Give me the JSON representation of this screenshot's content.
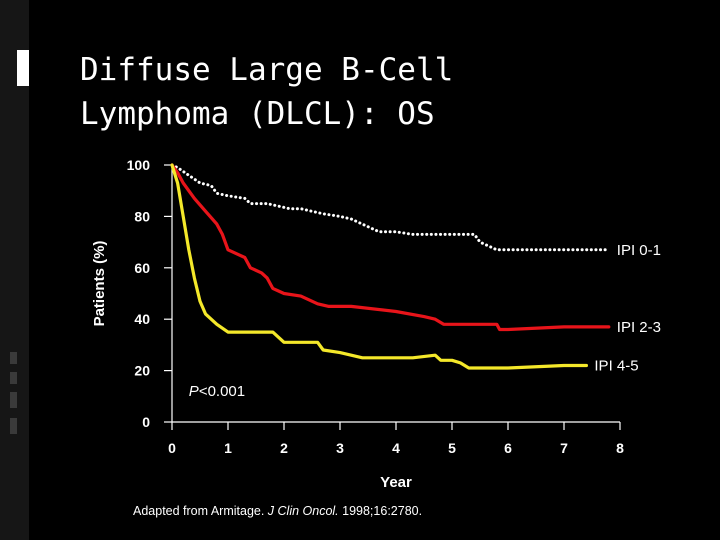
{
  "slide": {
    "title_line1": "Diffuse Large B-Cell",
    "title_line2": "Lymphoma (DLCL): OS"
  },
  "colors": {
    "ipi01": "#ffffff",
    "ipi23": "#e8141a",
    "ipi45": "#f4e82a",
    "axis": "#ffffff"
  },
  "chart_data": {
    "type": "line",
    "title": "Diffuse Large B-Cell Lymphoma (DLCL): OS",
    "xlabel": "Year",
    "ylabel": "Patients (%)",
    "xlim": [
      0,
      8
    ],
    "ylim": [
      0,
      100
    ],
    "x_ticks": [
      0,
      1,
      2,
      3,
      4,
      5,
      6,
      7,
      8
    ],
    "y_ticks": [
      0,
      20,
      40,
      60,
      80,
      100
    ],
    "annotation": "P<0.001",
    "series": [
      {
        "name": "IPI 0-1",
        "label": "IPI 0-1",
        "style": "dotted",
        "color_key": "ipi01",
        "points": [
          [
            0,
            100
          ],
          [
            0.1,
            99
          ],
          [
            0.3,
            96
          ],
          [
            0.5,
            93
          ],
          [
            0.7,
            92
          ],
          [
            0.8,
            89
          ],
          [
            1.0,
            88
          ],
          [
            1.3,
            87
          ],
          [
            1.4,
            85
          ],
          [
            1.7,
            85
          ],
          [
            1.9,
            84
          ],
          [
            2.1,
            83
          ],
          [
            2.3,
            83
          ],
          [
            2.5,
            82
          ],
          [
            2.7,
            81
          ],
          [
            3.0,
            80
          ],
          [
            3.2,
            79
          ],
          [
            3.5,
            76
          ],
          [
            3.7,
            74
          ],
          [
            4.0,
            74
          ],
          [
            4.3,
            73
          ],
          [
            5.0,
            73
          ],
          [
            5.4,
            73
          ],
          [
            5.5,
            70
          ],
          [
            5.8,
            67
          ],
          [
            6.0,
            67
          ],
          [
            7.0,
            67
          ],
          [
            7.8,
            67
          ]
        ]
      },
      {
        "name": "IPI 2-3",
        "label": "IPI 2-3",
        "style": "solid",
        "color_key": "ipi23",
        "points": [
          [
            0,
            100
          ],
          [
            0.1,
            97
          ],
          [
            0.2,
            93
          ],
          [
            0.4,
            87
          ],
          [
            0.6,
            82
          ],
          [
            0.8,
            77
          ],
          [
            0.9,
            73
          ],
          [
            1.0,
            67
          ],
          [
            1.3,
            64
          ],
          [
            1.4,
            60
          ],
          [
            1.6,
            58
          ],
          [
            1.7,
            56
          ],
          [
            1.8,
            52
          ],
          [
            2.0,
            50
          ],
          [
            2.3,
            49
          ],
          [
            2.6,
            46
          ],
          [
            2.8,
            45
          ],
          [
            3.2,
            45
          ],
          [
            4.0,
            43
          ],
          [
            4.5,
            41
          ],
          [
            4.7,
            40
          ],
          [
            4.85,
            38
          ],
          [
            5.0,
            38
          ],
          [
            5.8,
            38
          ],
          [
            5.85,
            36
          ],
          [
            6.0,
            36
          ],
          [
            7.0,
            37
          ],
          [
            7.8,
            37
          ]
        ]
      },
      {
        "name": "IPI 4-5",
        "label": "IPI 4-5",
        "style": "solid",
        "color_key": "ipi45",
        "points": [
          [
            0,
            100
          ],
          [
            0.1,
            93
          ],
          [
            0.2,
            80
          ],
          [
            0.3,
            67
          ],
          [
            0.4,
            56
          ],
          [
            0.5,
            47
          ],
          [
            0.6,
            42
          ],
          [
            0.8,
            38
          ],
          [
            1.0,
            35
          ],
          [
            1.3,
            35
          ],
          [
            1.8,
            35
          ],
          [
            2.0,
            31
          ],
          [
            2.3,
            31
          ],
          [
            2.6,
            31
          ],
          [
            2.7,
            28
          ],
          [
            3.0,
            27
          ],
          [
            3.2,
            26
          ],
          [
            3.4,
            25
          ],
          [
            4.0,
            25
          ],
          [
            4.3,
            25
          ],
          [
            4.7,
            26
          ],
          [
            4.8,
            24
          ],
          [
            5.0,
            24
          ],
          [
            5.15,
            23
          ],
          [
            5.3,
            21
          ],
          [
            5.6,
            21
          ],
          [
            6.0,
            21
          ],
          [
            7.0,
            22
          ],
          [
            7.4,
            22
          ]
        ]
      }
    ]
  },
  "footnote": {
    "prefix": "Adapted from Armitage. ",
    "journal": "J Clin Oncol.",
    "suffix": " 1998;16:2780."
  }
}
